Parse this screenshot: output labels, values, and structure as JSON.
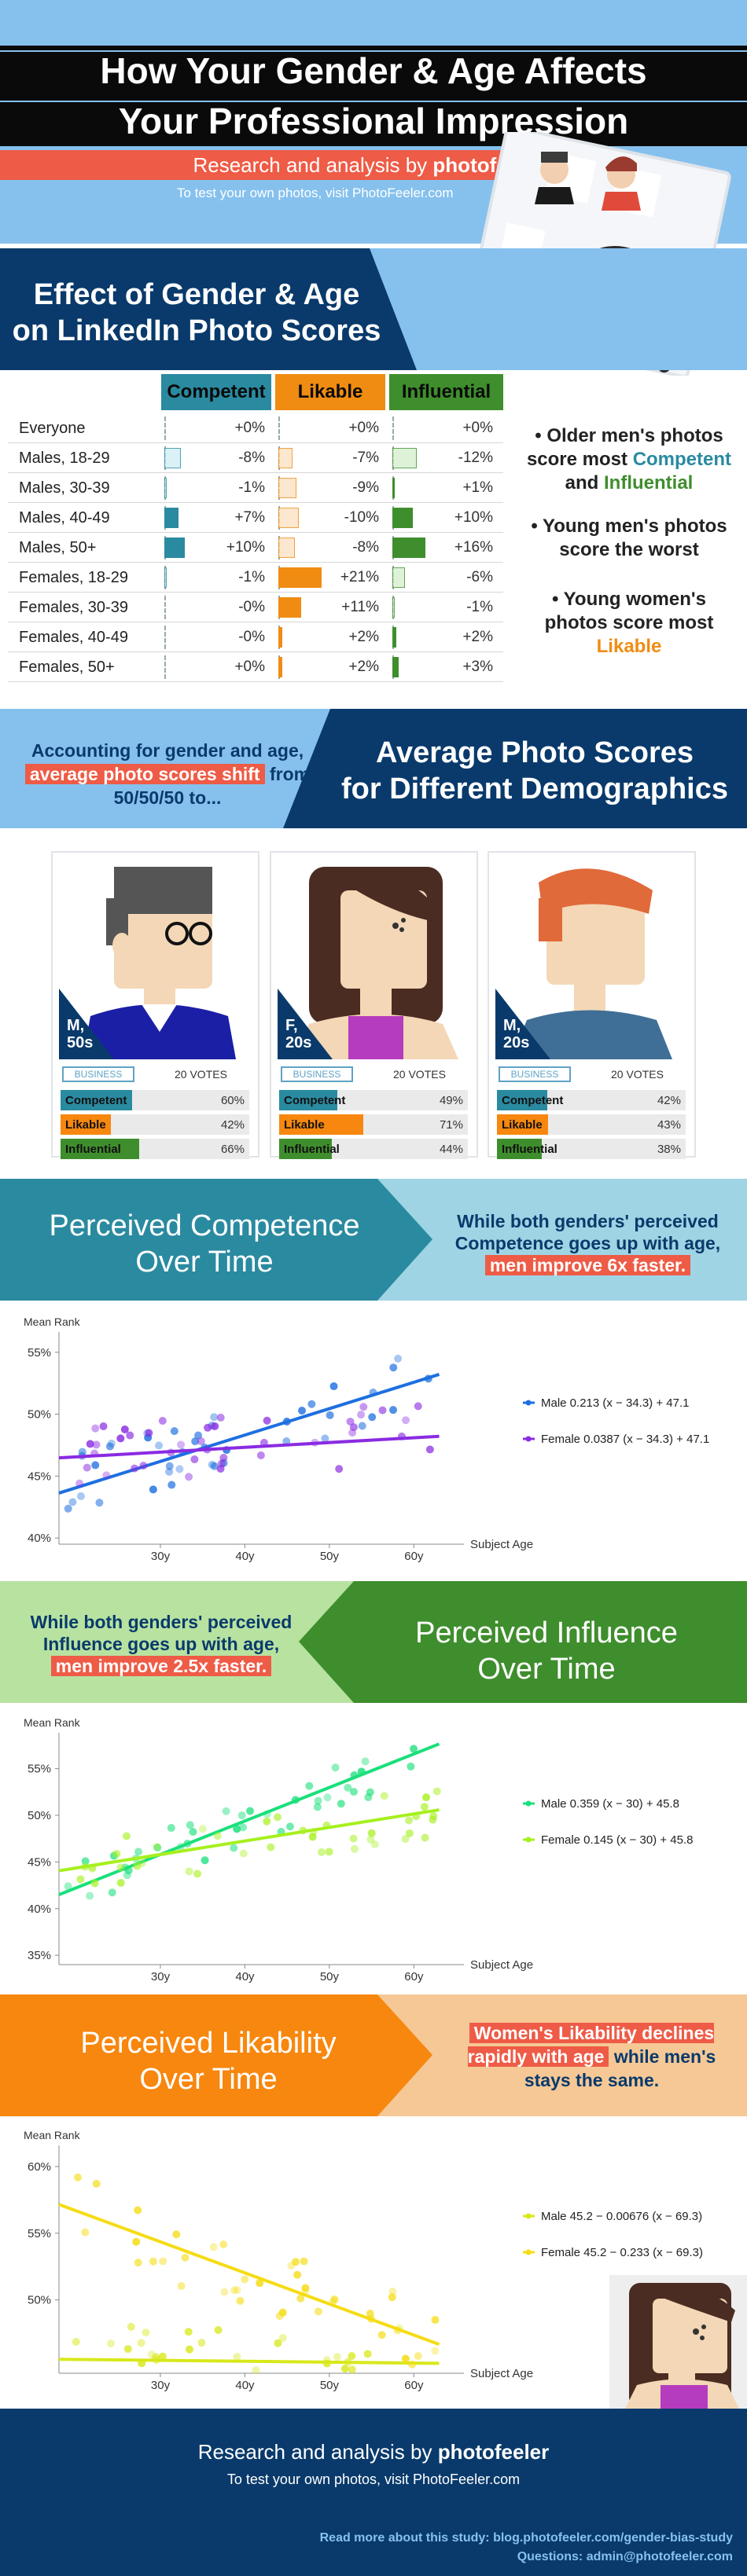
{
  "header": {
    "title_line1": "How Your Gender & Age Affects",
    "title_line2": "Your Professional Impression",
    "research_prefix": "Research and analysis by",
    "research_brand": "photofeeler",
    "test_note": "To test your own photos, visit PhotoFeeler.com"
  },
  "section1": {
    "title_line1": "Effect of Gender & Age",
    "title_line2": "on LinkedIn Photo Scores",
    "columns": [
      "Competent",
      "Likable",
      "Influential"
    ],
    "column_colors": [
      "#2a8aa0",
      "#f08c12",
      "#3f8e2d"
    ],
    "rows": [
      {
        "label": "Everyone",
        "values": [
          "+0%",
          "+0%",
          "+0%"
        ]
      },
      {
        "label": "Males, 18-29",
        "values": [
          "-8%",
          "-7%",
          "-12%"
        ]
      },
      {
        "label": "Males, 30-39",
        "values": [
          "-1%",
          "-9%",
          "+1%"
        ]
      },
      {
        "label": "Males, 40-49",
        "values": [
          "+7%",
          "-10%",
          "+10%"
        ]
      },
      {
        "label": "Males, 50+",
        "values": [
          "+10%",
          "-8%",
          "+16%"
        ]
      },
      {
        "label": "Females, 18-29",
        "values": [
          "-1%",
          "+21%",
          "-6%"
        ]
      },
      {
        "label": "Females, 30-39",
        "values": [
          "-0%",
          "+11%",
          "-1%"
        ]
      },
      {
        "label": "Females, 40-49",
        "values": [
          "-0%",
          "+2%",
          "+2%"
        ]
      },
      {
        "label": "Females, 50+",
        "values": [
          "+0%",
          "+2%",
          "+3%"
        ]
      }
    ],
    "bullet1_a": "• Older men's photos score most",
    "bullet1_b": "Competent",
    "bullet1_c": "and",
    "bullet1_d": "Influential",
    "bullet2": "• Young men's photos score the worst",
    "bullet3_a": "• Young women's photos score most",
    "bullet3_b": "Likable"
  },
  "section2": {
    "left_text_a": "Accounting for gender and age,",
    "left_highlight": "average photo scores shift",
    "left_text_b": "from 50/50/50 to...",
    "title_line1": "Average Photo Scores",
    "title_line2": "for Different Demographics",
    "cards": [
      {
        "tag_line1": "M,",
        "tag_line2": "50s",
        "category": "BUSINESS",
        "votes": "20 VOTES",
        "scores": [
          {
            "name": "Competent",
            "pct": "60%",
            "value": 60
          },
          {
            "name": "Likable",
            "pct": "42%",
            "value": 42
          },
          {
            "name": "Influential",
            "pct": "66%",
            "value": 66
          }
        ]
      },
      {
        "tag_line1": "F,",
        "tag_line2": "20s",
        "category": "BUSINESS",
        "votes": "20 VOTES",
        "scores": [
          {
            "name": "Competent",
            "pct": "49%",
            "value": 49
          },
          {
            "name": "Likable",
            "pct": "71%",
            "value": 71
          },
          {
            "name": "Influential",
            "pct": "44%",
            "value": 44
          }
        ]
      },
      {
        "tag_line1": "M,",
        "tag_line2": "20s",
        "category": "BUSINESS",
        "votes": "20 VOTES",
        "scores": [
          {
            "name": "Competent",
            "pct": "42%",
            "value": 42
          },
          {
            "name": "Likable",
            "pct": "43%",
            "value": 43
          },
          {
            "name": "Influential",
            "pct": "38%",
            "value": 38
          }
        ]
      }
    ]
  },
  "section3": {
    "title_line1": "Perceived Competence",
    "title_line2": "Over Time",
    "right_text": "While both genders' perceived Competence goes up with age,",
    "right_highlight": "men improve 6x faster."
  },
  "section4": {
    "left_text": "While both genders' perceived Influence goes up with age,",
    "left_highlight": "men improve 2.5x faster.",
    "title_line1": "Perceived Influence",
    "title_line2": "Over Time"
  },
  "section5": {
    "title_line1": "Perceived Likability",
    "title_line2": "Over Time",
    "right_highlight": "Women's Likability declines rapidly with age",
    "right_text": "while men's stays the same."
  },
  "chart_data": [
    {
      "type": "scatter",
      "title": "",
      "ylabel": "Mean Rank",
      "xlabel": "Subject Age",
      "x_ticks": [
        "30y",
        "40y",
        "50y",
        "60y"
      ],
      "y_ticks": [
        "40%",
        "45%",
        "50%",
        "55%"
      ],
      "xlim": [
        18,
        65
      ],
      "ylim": [
        39.5,
        56
      ],
      "series": [
        {
          "name": "Male 0.213 (x − 34.3) + 47.1",
          "color": "#1e6fe0",
          "line": {
            "slope": 0.213,
            "x0": 34.3,
            "b": 47.1
          }
        },
        {
          "name": "Female 0.0387 (x − 34.3) + 47.1",
          "color": "#8a2be2",
          "line": {
            "slope": 0.0387,
            "x0": 34.3,
            "b": 47.1
          }
        }
      ]
    },
    {
      "type": "scatter",
      "title": "",
      "ylabel": "Mean Rank",
      "xlabel": "Subject Age",
      "x_ticks": [
        "30y",
        "40y",
        "50y",
        "60y"
      ],
      "y_ticks": [
        "35%",
        "40%",
        "45%",
        "50%",
        "55%"
      ],
      "xlim": [
        18,
        65
      ],
      "ylim": [
        34,
        58
      ],
      "series": [
        {
          "name": "Male 0.359 (x − 30) + 45.8",
          "color": "#19e07a",
          "line": {
            "slope": 0.359,
            "x0": 30,
            "b": 45.8
          }
        },
        {
          "name": "Female 0.145 (x − 30) + 45.8",
          "color": "#a6f01e",
          "line": {
            "slope": 0.145,
            "x0": 30,
            "b": 45.8
          }
        }
      ]
    },
    {
      "type": "scatter",
      "title": "",
      "ylabel": "Mean Rank",
      "xlabel": "Subject Age",
      "x_ticks": [
        "30y",
        "40y",
        "50y",
        "60y"
      ],
      "y_ticks": [
        "50%",
        "55%",
        "60%"
      ],
      "xlim": [
        18,
        65
      ],
      "ylim": [
        44.5,
        61
      ],
      "series": [
        {
          "name": "Male 45.2 − 0.00676 (x − 69.3)",
          "color": "#d8e81a",
          "line": {
            "slope": -0.00676,
            "x0": 69.3,
            "b": 45.2
          }
        },
        {
          "name": "Female 45.2 − 0.233 (x − 69.3)",
          "color": "#f5dc14",
          "line": {
            "slope": -0.233,
            "x0": 69.3,
            "b": 45.2
          }
        }
      ]
    }
  ],
  "footer": {
    "research_prefix": "Research and analysis by",
    "research_brand": "photofeeler",
    "test_note": "To test your own photos, visit PhotoFeeler.com",
    "read_more": "Read more about this study: blog.photofeeler.com/gender-bias-study",
    "questions": "Questions: admin@photofeeler.com"
  }
}
